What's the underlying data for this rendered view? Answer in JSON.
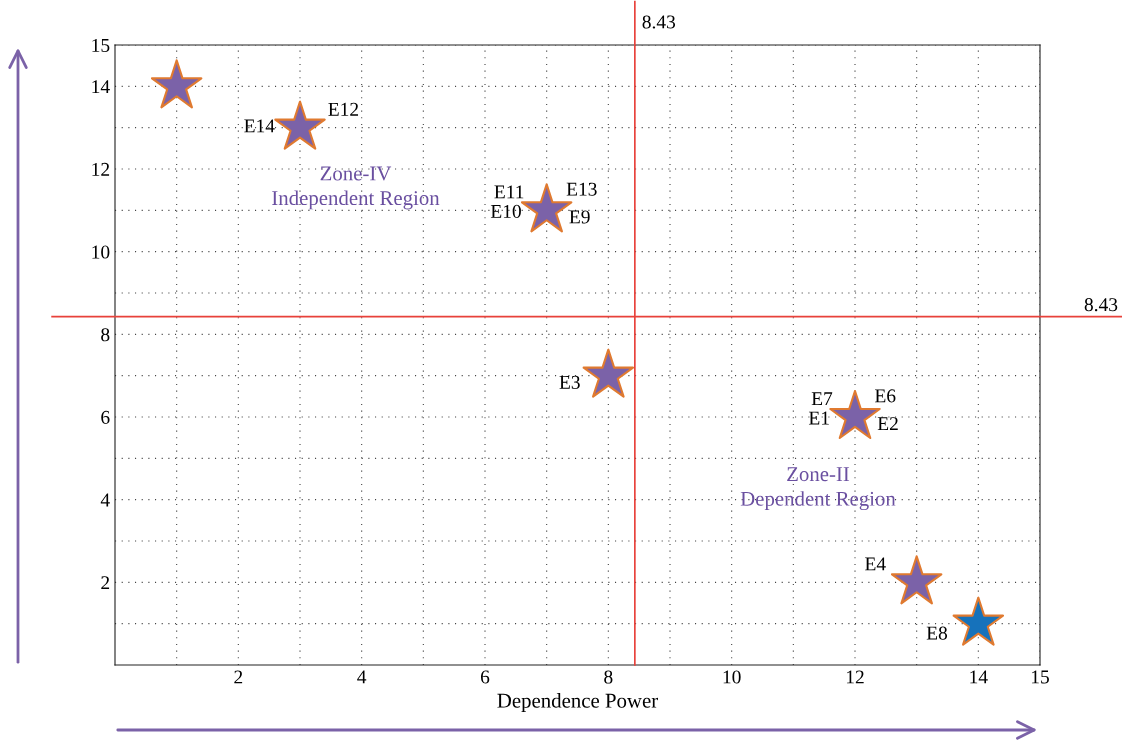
{
  "chart_data": {
    "type": "scatter",
    "xlabel": "Dependence Power",
    "x": [
      1,
      3,
      7,
      8,
      12,
      13,
      14
    ],
    "values": [
      14,
      13,
      11,
      7,
      6,
      2,
      1
    ],
    "colors": [
      "#7b62a8",
      "#7b62a8",
      "#7b62a8",
      "#7b62a8",
      "#7b62a8",
      "#7b62a8",
      "#1672bb"
    ],
    "marker": "star",
    "xlim": [
      0,
      15
    ],
    "ylim": [
      0,
      15
    ],
    "xticks": [
      {
        "value": 1,
        "label": null
      },
      2,
      {
        "value": 3,
        "label": null
      },
      4,
      {
        "value": 5,
        "label": null
      },
      6,
      {
        "value": 7,
        "label": null
      },
      8,
      {
        "value": 9,
        "label": null
      },
      10,
      {
        "value": 11,
        "label": null
      },
      12,
      {
        "value": 13,
        "label": null
      },
      14,
      15
    ],
    "yticks": [
      {
        "value": 1,
        "label": null
      },
      2,
      {
        "value": 3,
        "label": null
      },
      4,
      {
        "value": 5,
        "label": null
      },
      6,
      {
        "value": 7,
        "label": null
      },
      8,
      {
        "value": 9,
        "label": null
      },
      10,
      {
        "value": 11,
        "label": null
      },
      12,
      {
        "value": 13,
        "label": null
      },
      14,
      15
    ],
    "grid": true,
    "ref_lines": [
      {
        "axis": "x",
        "value": 8.43,
        "label": "8.43",
        "color": "#e8413a"
      },
      {
        "axis": "y",
        "value": 8.43,
        "label": "8.43",
        "color": "#e8413a"
      }
    ],
    "annotations": [
      {
        "text": "E14",
        "x": 3,
        "y": 13
      },
      {
        "text": "E12",
        "x": 3,
        "y": 13
      },
      {
        "text": "E11",
        "x": 7,
        "y": 11
      },
      {
        "text": "E13",
        "x": 7,
        "y": 11
      },
      {
        "text": "E10",
        "x": 7,
        "y": 11
      },
      {
        "text": "E9",
        "x": 7,
        "y": 11
      },
      {
        "text": "E3",
        "x": 8,
        "y": 7
      },
      {
        "text": "E7",
        "x": 12,
        "y": 6
      },
      {
        "text": "E6",
        "x": 12,
        "y": 6
      },
      {
        "text": "E1",
        "x": 12,
        "y": 6
      },
      {
        "text": "E2",
        "x": 12,
        "y": 6
      },
      {
        "text": "E4",
        "x": 13,
        "y": 2
      },
      {
        "text": "E8",
        "x": 14,
        "y": 1
      },
      "Zone-IV\nIndependent Region",
      "Zone-II\nDependent Region"
    ]
  }
}
